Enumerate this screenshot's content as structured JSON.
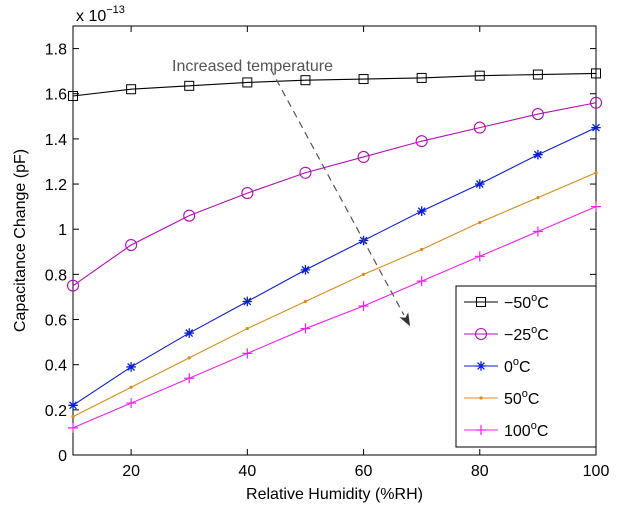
{
  "chart_data": {
    "type": "line",
    "xlabel": "Relative Humidity (%RH)",
    "ylabel": "Capacitance Change (pF)",
    "y_multiplier": {
      "base": "x 10",
      "exponent": "−13"
    },
    "xlim": [
      10,
      100
    ],
    "ylim": [
      0,
      1.9
    ],
    "xticks": [
      20,
      40,
      60,
      80,
      100
    ],
    "yticks": [
      0,
      0.2,
      0.4,
      0.6,
      0.8,
      1,
      1.2,
      1.4,
      1.6,
      1.8
    ],
    "ytick_labels": [
      "0",
      "0.2",
      "0.4",
      "0.6",
      "0.8",
      "1",
      "1.2",
      "1.4",
      "1.6",
      "1.8"
    ],
    "grid": false,
    "legend_position": "bottom-right",
    "x": [
      10,
      20,
      30,
      40,
      50,
      60,
      70,
      80,
      90,
      100
    ],
    "series": [
      {
        "name": "−50",
        "sup": "o",
        "unit": "C",
        "color": "#000000",
        "marker": "square",
        "values": [
          1.59,
          1.62,
          1.635,
          1.65,
          1.66,
          1.665,
          1.67,
          1.68,
          1.685,
          1.69
        ]
      },
      {
        "name": "−25",
        "sup": "o",
        "unit": "C",
        "color": "#b30fb3",
        "marker": "circle",
        "values": [
          0.75,
          0.93,
          1.06,
          1.16,
          1.25,
          1.32,
          1.39,
          1.45,
          1.51,
          1.56
        ]
      },
      {
        "name": "0",
        "sup": "o",
        "unit": "C",
        "color": "#0a1ed6",
        "marker": "asterisk",
        "values": [
          0.22,
          0.39,
          0.54,
          0.68,
          0.82,
          0.95,
          1.08,
          1.2,
          1.33,
          1.45
        ]
      },
      {
        "name": "50",
        "sup": "o",
        "unit": "C",
        "color": "#d98b1a",
        "marker": "dot",
        "values": [
          0.17,
          0.3,
          0.43,
          0.56,
          0.68,
          0.8,
          0.91,
          1.03,
          1.14,
          1.25
        ]
      },
      {
        "name": "100",
        "sup": "o",
        "unit": "C",
        "color": "#ee22ee",
        "marker": "plus",
        "values": [
          0.12,
          0.23,
          0.34,
          0.45,
          0.56,
          0.66,
          0.77,
          0.88,
          0.99,
          1.1
        ]
      }
    ],
    "annotation": {
      "text": "Increased temperature",
      "arrow_from": [
        44,
        1.71
      ],
      "arrow_to": [
        68,
        0.57
      ]
    }
  }
}
